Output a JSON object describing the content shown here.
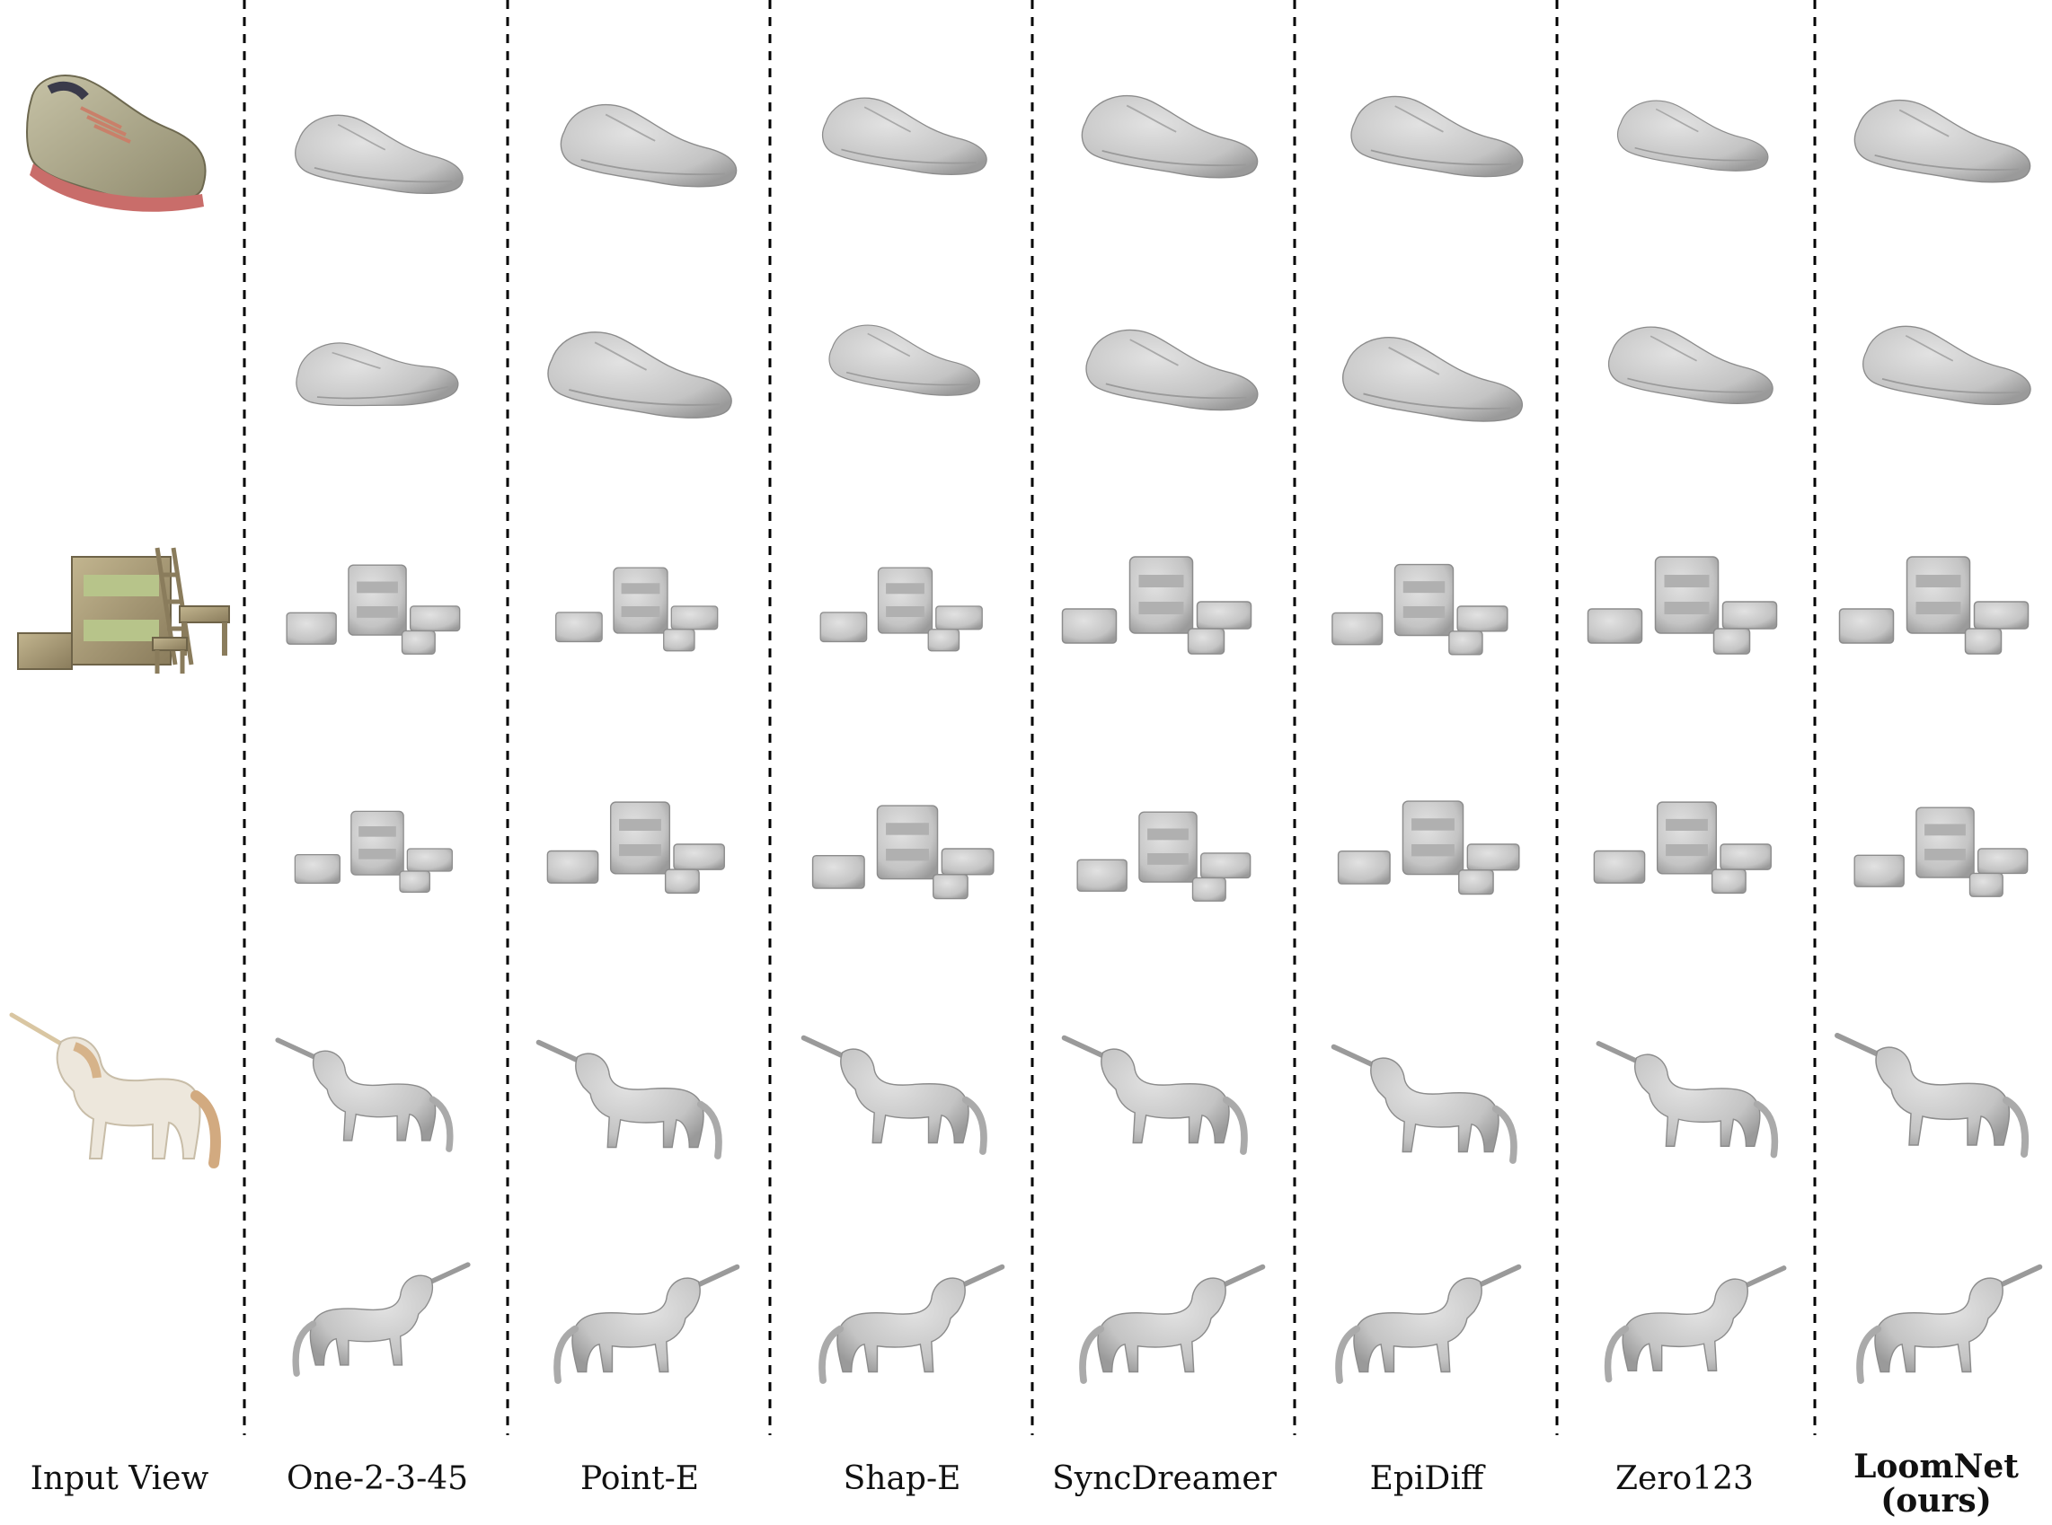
{
  "columns": [
    {
      "id": "input",
      "label": "Input View"
    },
    {
      "id": "one2345",
      "label": "One-2-3-45"
    },
    {
      "id": "pointe",
      "label": "Point-E"
    },
    {
      "id": "shape",
      "label": "Shap-E"
    },
    {
      "id": "syncdreamer",
      "label": "SyncDreamer"
    },
    {
      "id": "epidiff",
      "label": "EpiDiff"
    },
    {
      "id": "zero123",
      "label": "Zero123"
    },
    {
      "id": "loomnet",
      "label": "LoomNet",
      "label_line2": "(ours)"
    }
  ],
  "objects": [
    "shoe",
    "bunk-bed-set",
    "unicorn"
  ],
  "colors": {
    "mesh": "#c9c9c9",
    "mesh_shade": "#9e9e9e",
    "shoe_upper": "#b3ad8f",
    "shoe_sole": "#c96d6a",
    "bed_wood": "#a89a78",
    "unicorn_body": "#eae4da",
    "unicorn_mane": "#d6b38a",
    "divider": "#000000"
  }
}
